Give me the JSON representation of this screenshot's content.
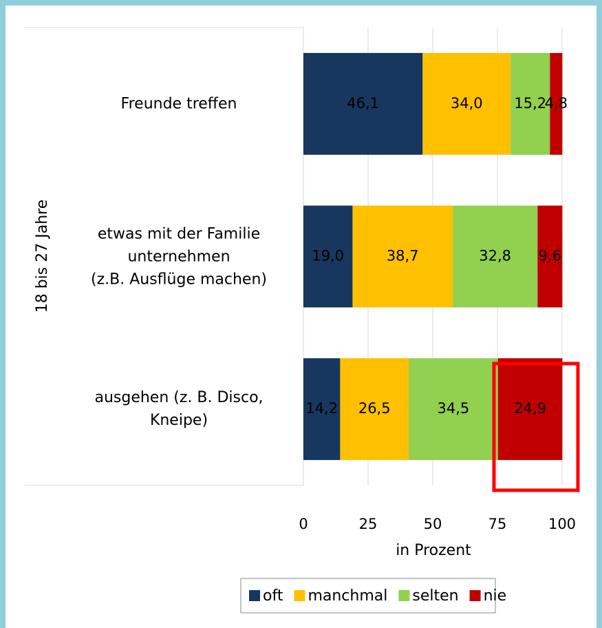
{
  "chart_data": {
    "type": "stacked_bar_horizontal",
    "group_label": "18 bis 27 Jahre",
    "categories": [
      "Freunde treffen",
      "etwas mit der Familie\nunternehmen\n(z.B. Ausflüge machen)",
      "ausgehen (z. B. Disco,\nKneipe)"
    ],
    "series": [
      {
        "name": "oft",
        "color": "#17375e",
        "values": [
          46.1,
          19.0,
          14.2
        ],
        "value_labels": [
          "46,1",
          "19,0",
          "14,2"
        ]
      },
      {
        "name": "manchmal",
        "color": "#ffc000",
        "values": [
          34.0,
          38.7,
          26.5
        ],
        "value_labels": [
          "34,0",
          "38,7",
          "26,5"
        ]
      },
      {
        "name": "selten",
        "color": "#92d050",
        "values": [
          15.2,
          32.8,
          34.5
        ],
        "value_labels": [
          "15,2",
          "32,8",
          "34,5"
        ]
      },
      {
        "name": "nie",
        "color": "#c00000",
        "values": [
          4.8,
          9.6,
          24.9
        ],
        "value_labels": [
          "4,8",
          "9,6",
          "24,9"
        ]
      }
    ],
    "xlim": [
      0,
      100
    ],
    "xticks": [
      0,
      25,
      50,
      75,
      100
    ],
    "x_label": "in Prozent",
    "grid": true,
    "legend": "bottom"
  }
}
